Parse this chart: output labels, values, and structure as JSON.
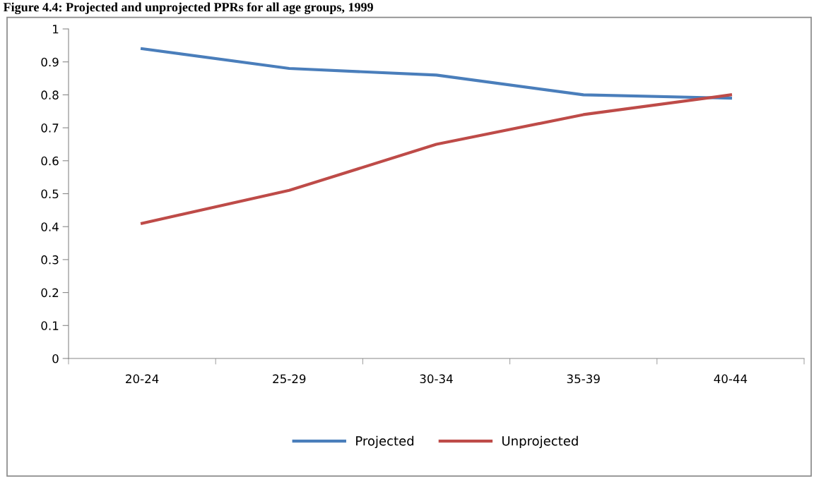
{
  "chart_data": {
    "type": "line",
    "title": "Figure 4.4: Projected and unprojected PPRs for all age groups, 1999",
    "categories": [
      "20-24",
      "25-29",
      "30-34",
      "35-39",
      "40-44"
    ],
    "series": [
      {
        "name": "Projected",
        "color": "#4a7ebb",
        "values": [
          0.94,
          0.88,
          0.86,
          0.8,
          0.79
        ]
      },
      {
        "name": "Unprojected",
        "color": "#be4b48",
        "values": [
          0.41,
          0.51,
          0.65,
          0.74,
          0.8
        ]
      }
    ],
    "ylim": [
      0,
      1
    ],
    "yticks": [
      0,
      0.1,
      0.2,
      0.3,
      0.4,
      0.5,
      0.6,
      0.7,
      0.8,
      0.9,
      1
    ],
    "grid": false,
    "legend": "bottom",
    "marker": "none",
    "line_style": "solid"
  }
}
